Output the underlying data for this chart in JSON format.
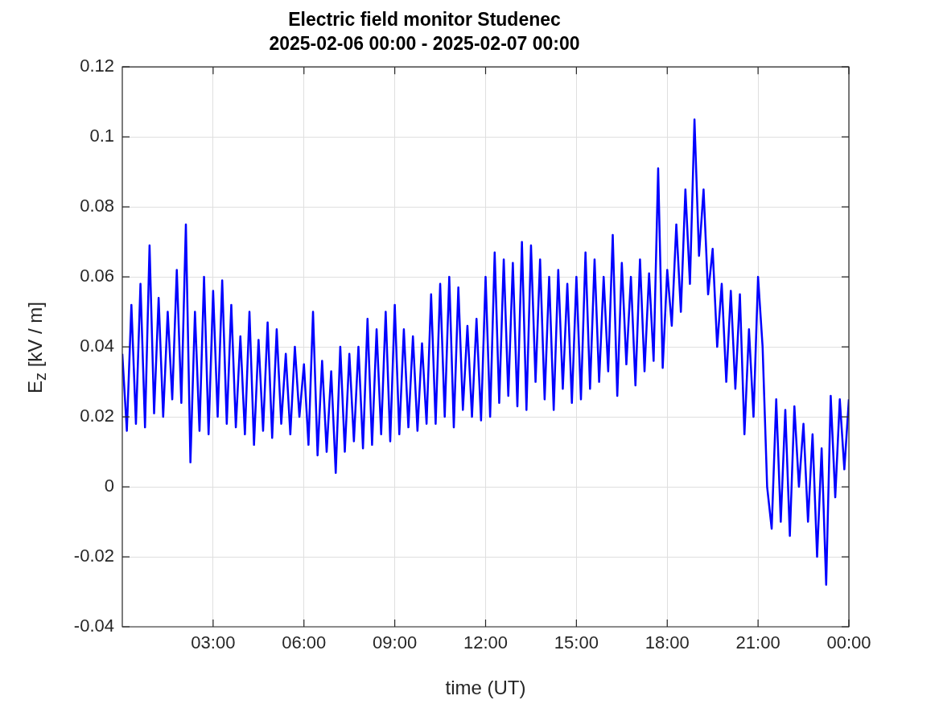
{
  "chart_data": {
    "type": "line",
    "title": "Electric field monitor Studenec",
    "subtitle": "2025-02-06 00:00 - 2025-02-07 00:00",
    "xlabel": "time (UT)",
    "ylabel": "E$_{z}$ [kV / m]",
    "xlim": [
      0,
      24
    ],
    "xticks": [
      {
        "value": 3,
        "label": "03:00"
      },
      {
        "value": 6,
        "label": "06:00"
      },
      {
        "value": 9,
        "label": "09:00"
      },
      {
        "value": 12,
        "label": "12:00"
      },
      {
        "value": 15,
        "label": "15:00"
      },
      {
        "value": 18,
        "label": "18:00"
      },
      {
        "value": 21,
        "label": "21:00"
      },
      {
        "value": 24,
        "label": "00:00"
      }
    ],
    "ylim": [
      -0.04,
      0.12
    ],
    "yticks": [
      -0.04,
      -0.02,
      0,
      0.02,
      0.04,
      0.06,
      0.08,
      0.1,
      0.12
    ],
    "grid": true,
    "marker": "none",
    "line_style": "solid",
    "x": [
      0,
      0.15,
      0.3,
      0.45,
      0.6,
      0.75,
      0.9,
      1.05,
      1.2,
      1.35,
      1.5,
      1.65,
      1.8,
      1.95,
      2.1,
      2.25,
      2.4,
      2.55,
      2.7,
      2.85,
      3,
      3.15,
      3.3,
      3.45,
      3.6,
      3.75,
      3.9,
      4.05,
      4.2,
      4.35,
      4.5,
      4.65,
      4.8,
      4.95,
      5.1,
      5.25,
      5.4,
      5.55,
      5.7,
      5.85,
      6,
      6.15,
      6.3,
      6.45,
      6.6,
      6.75,
      6.9,
      7.05,
      7.2,
      7.35,
      7.5,
      7.65,
      7.8,
      7.95,
      8.1,
      8.25,
      8.4,
      8.55,
      8.7,
      8.85,
      9,
      9.15,
      9.3,
      9.45,
      9.6,
      9.75,
      9.9,
      10.05,
      10.2,
      10.35,
      10.5,
      10.65,
      10.8,
      10.95,
      11.1,
      11.25,
      11.4,
      11.55,
      11.7,
      11.85,
      12,
      12.15,
      12.3,
      12.45,
      12.6,
      12.75,
      12.9,
      13.05,
      13.2,
      13.35,
      13.5,
      13.65,
      13.8,
      13.95,
      14.1,
      14.25,
      14.4,
      14.55,
      14.7,
      14.85,
      15,
      15.15,
      15.3,
      15.45,
      15.6,
      15.75,
      15.9,
      16.05,
      16.2,
      16.35,
      16.5,
      16.65,
      16.8,
      16.95,
      17.1,
      17.25,
      17.4,
      17.55,
      17.7,
      17.85,
      18,
      18.15,
      18.3,
      18.45,
      18.6,
      18.75,
      18.9,
      19.05,
      19.2,
      19.35,
      19.5,
      19.65,
      19.8,
      19.95,
      20.1,
      20.25,
      20.4,
      20.55,
      20.7,
      20.85,
      21,
      21.15,
      21.3,
      21.45,
      21.6,
      21.75,
      21.9,
      22.05,
      22.2,
      22.35,
      22.5,
      22.65,
      22.8,
      22.95,
      23.1,
      23.25,
      23.4,
      23.55,
      23.7,
      23.85,
      24
    ],
    "series": [
      {
        "color": "#0000ff",
        "values": [
          0.038,
          0.016,
          0.052,
          0.018,
          0.058,
          0.017,
          0.069,
          0.021,
          0.054,
          0.02,
          0.05,
          0.025,
          0.062,
          0.024,
          0.075,
          0.007,
          0.05,
          0.016,
          0.06,
          0.015,
          0.056,
          0.02,
          0.059,
          0.018,
          0.052,
          0.017,
          0.043,
          0.015,
          0.05,
          0.012,
          0.042,
          0.016,
          0.047,
          0.014,
          0.045,
          0.018,
          0.038,
          0.015,
          0.04,
          0.02,
          0.035,
          0.012,
          0.05,
          0.009,
          0.036,
          0.01,
          0.033,
          0.004,
          0.04,
          0.01,
          0.038,
          0.013,
          0.04,
          0.011,
          0.048,
          0.012,
          0.045,
          0.015,
          0.05,
          0.013,
          0.052,
          0.015,
          0.045,
          0.017,
          0.043,
          0.016,
          0.041,
          0.018,
          0.055,
          0.018,
          0.058,
          0.02,
          0.06,
          0.017,
          0.057,
          0.022,
          0.046,
          0.02,
          0.048,
          0.019,
          0.06,
          0.02,
          0.067,
          0.024,
          0.065,
          0.026,
          0.064,
          0.023,
          0.07,
          0.022,
          0.069,
          0.03,
          0.065,
          0.025,
          0.06,
          0.022,
          0.062,
          0.028,
          0.058,
          0.024,
          0.06,
          0.025,
          0.067,
          0.028,
          0.065,
          0.03,
          0.06,
          0.033,
          0.072,
          0.026,
          0.064,
          0.035,
          0.06,
          0.029,
          0.065,
          0.033,
          0.061,
          0.036,
          0.091,
          0.034,
          0.062,
          0.046,
          0.075,
          0.05,
          0.085,
          0.058,
          0.105,
          0.066,
          0.085,
          0.055,
          0.068,
          0.04,
          0.058,
          0.03,
          0.056,
          0.028,
          0.055,
          0.015,
          0.045,
          0.02,
          0.06,
          0.04,
          0.0,
          -0.012,
          0.025,
          -0.01,
          0.022,
          -0.014,
          0.023,
          0.0,
          0.018,
          -0.01,
          0.015,
          -0.02,
          0.011,
          -0.028,
          0.026,
          -0.003,
          0.025,
          0.005,
          0.025
        ]
      }
    ]
  }
}
